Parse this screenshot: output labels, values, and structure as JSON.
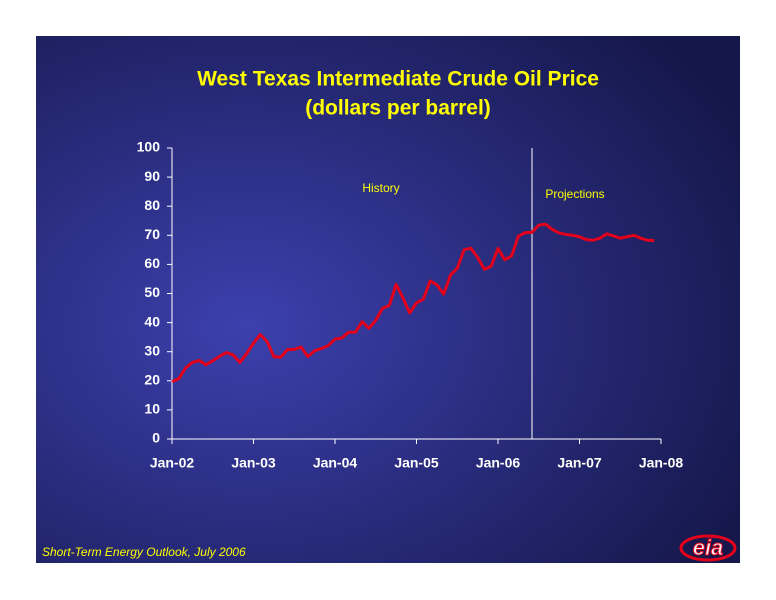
{
  "chart_data": {
    "type": "line",
    "title": "West Texas Intermediate Crude Oil Price",
    "subtitle": "(dollars per barrel)",
    "categories": [
      "Jan-02",
      null,
      null,
      null,
      null,
      null,
      null,
      null,
      null,
      null,
      null,
      null,
      "Jan-03",
      null,
      null,
      null,
      null,
      null,
      null,
      null,
      null,
      null,
      null,
      null,
      "Jan-04",
      null,
      null,
      null,
      null,
      null,
      null,
      null,
      null,
      null,
      null,
      null,
      "Jan-05",
      null,
      null,
      null,
      null,
      null,
      null,
      null,
      null,
      null,
      null,
      null,
      "Jan-06",
      null,
      null,
      null,
      null,
      null,
      null,
      null,
      null,
      null,
      null,
      null,
      "Jan-07",
      null,
      null,
      null,
      null,
      null,
      null,
      null,
      null,
      null,
      null,
      null,
      "Jan-08"
    ],
    "series": [
      {
        "color": "#e3001b",
        "values": [
          19.7,
          20.7,
          24.4,
          26.3,
          27.0,
          25.5,
          26.9,
          28.4,
          29.7,
          28.9,
          26.3,
          29.4,
          32.9,
          35.9,
          33.5,
          28.3,
          28.1,
          30.7,
          30.8,
          31.6,
          28.3,
          30.3,
          31.1,
          32.1,
          34.3,
          34.7,
          36.7,
          36.7,
          40.3,
          38.0,
          40.8,
          44.9,
          45.9,
          53.1,
          48.5,
          43.3,
          46.8,
          48.0,
          54.3,
          53.0,
          49.8,
          56.3,
          58.7,
          65.0,
          65.6,
          62.4,
          58.3,
          59.4,
          65.5,
          61.6,
          62.9,
          69.7,
          70.9,
          71.0,
          73.5,
          73.8,
          72.0,
          70.8,
          70.3,
          70.0,
          69.5,
          68.5,
          68.3,
          69.0,
          70.5,
          69.8,
          69.0,
          69.5,
          70.0,
          69.0,
          68.3,
          68.2,
          null
        ]
      }
    ],
    "ylim": [
      0,
      100
    ],
    "yticks": [
      0,
      10,
      20,
      30,
      40,
      50,
      60,
      70,
      80,
      90,
      100
    ],
    "annotations": [
      "History",
      "Projections"
    ],
    "footer": "Short-Term Energy Outlook, July 2006",
    "logo": "eia"
  }
}
